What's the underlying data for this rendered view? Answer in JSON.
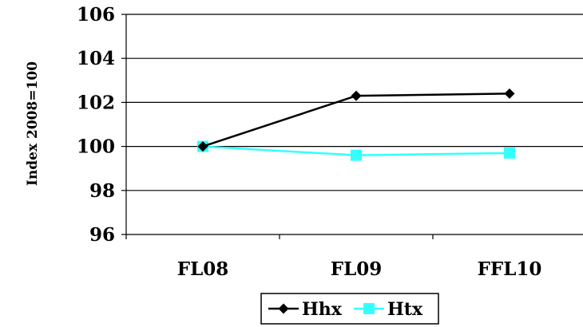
{
  "chart_data": {
    "type": "line",
    "title": "",
    "xlabel": "",
    "ylabel": "Index 2008=100",
    "categories": [
      "FL08",
      "FL09",
      "FFL10"
    ],
    "ylim": [
      96,
      106
    ],
    "yticks": [
      96,
      98,
      100,
      102,
      104,
      106
    ],
    "grid": "horizontal",
    "legend": "bottom",
    "series": [
      {
        "name": "Hhx",
        "values": [
          100.0,
          102.3,
          102.4
        ],
        "color": "#000000",
        "marker": "diamond"
      },
      {
        "name": "Htx",
        "values": [
          100.0,
          99.6,
          99.7
        ],
        "color": "#33ffff",
        "marker": "square"
      }
    ]
  }
}
